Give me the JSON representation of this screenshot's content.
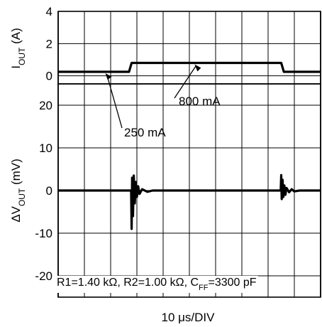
{
  "chart_data": [
    {
      "type": "line",
      "ylabel_main": "I",
      "ylabel_sub": "OUT",
      "ylabel_unit": " (A)",
      "ylim": [
        -0.5,
        4
      ],
      "yticks": [
        0,
        2,
        4
      ],
      "ytick_labels": [
        "0",
        "2",
        "4"
      ],
      "x_divisions": 10,
      "grid": true,
      "series": [
        {
          "x": [
            0,
            2.7,
            2.8,
            8.5,
            8.6,
            10
          ],
          "y": [
            0.25,
            0.25,
            0.8,
            0.8,
            0.25,
            0.25
          ]
        }
      ],
      "annotations": [
        {
          "text": "800 mA",
          "x": 5.2,
          "y": 0.8
        },
        {
          "text": "250 mA",
          "x": 1.8,
          "y": 0.25
        }
      ]
    },
    {
      "type": "line",
      "ylabel_main": "ΔV",
      "ylabel_sub": "OUT",
      "ylabel_unit": " (mV)",
      "ylim": [
        -25,
        25
      ],
      "yticks": [
        20,
        10,
        0,
        -10,
        -20
      ],
      "ytick_labels": [
        "20",
        "10",
        "0",
        "-10",
        "-20"
      ],
      "x_divisions": 10,
      "grid": true,
      "series": [
        {
          "x": [
            0,
            2.78,
            2.8,
            2.82,
            2.85,
            2.88,
            2.92,
            2.96,
            3.0,
            3.05,
            3.1,
            3.2,
            3.4,
            3.6,
            8.48,
            8.5,
            8.52,
            8.55,
            8.58,
            8.62,
            8.66,
            8.7,
            8.8,
            8.9,
            9.0,
            9.2,
            10
          ],
          "y": [
            0,
            0,
            -9,
            3,
            -6,
            3.5,
            -3,
            2,
            -1.5,
            1,
            -0.8,
            0.3,
            -0.3,
            0,
            0,
            3.6,
            -2,
            2.5,
            -1.5,
            1.2,
            -1,
            0.6,
            -0.4,
            0.3,
            -0.2,
            0,
            0
          ]
        }
      ],
      "condition_text": {
        "r_text": "R1=1.40 kΩ, R2=1.00 kΩ, C",
        "r_sub": "FF",
        "r_tail": "=3300 pF"
      }
    }
  ],
  "xlabel": "10 μs/DIV",
  "colors": {
    "trace": "#000000",
    "grid": "#000000",
    "background": "#ffffff"
  }
}
